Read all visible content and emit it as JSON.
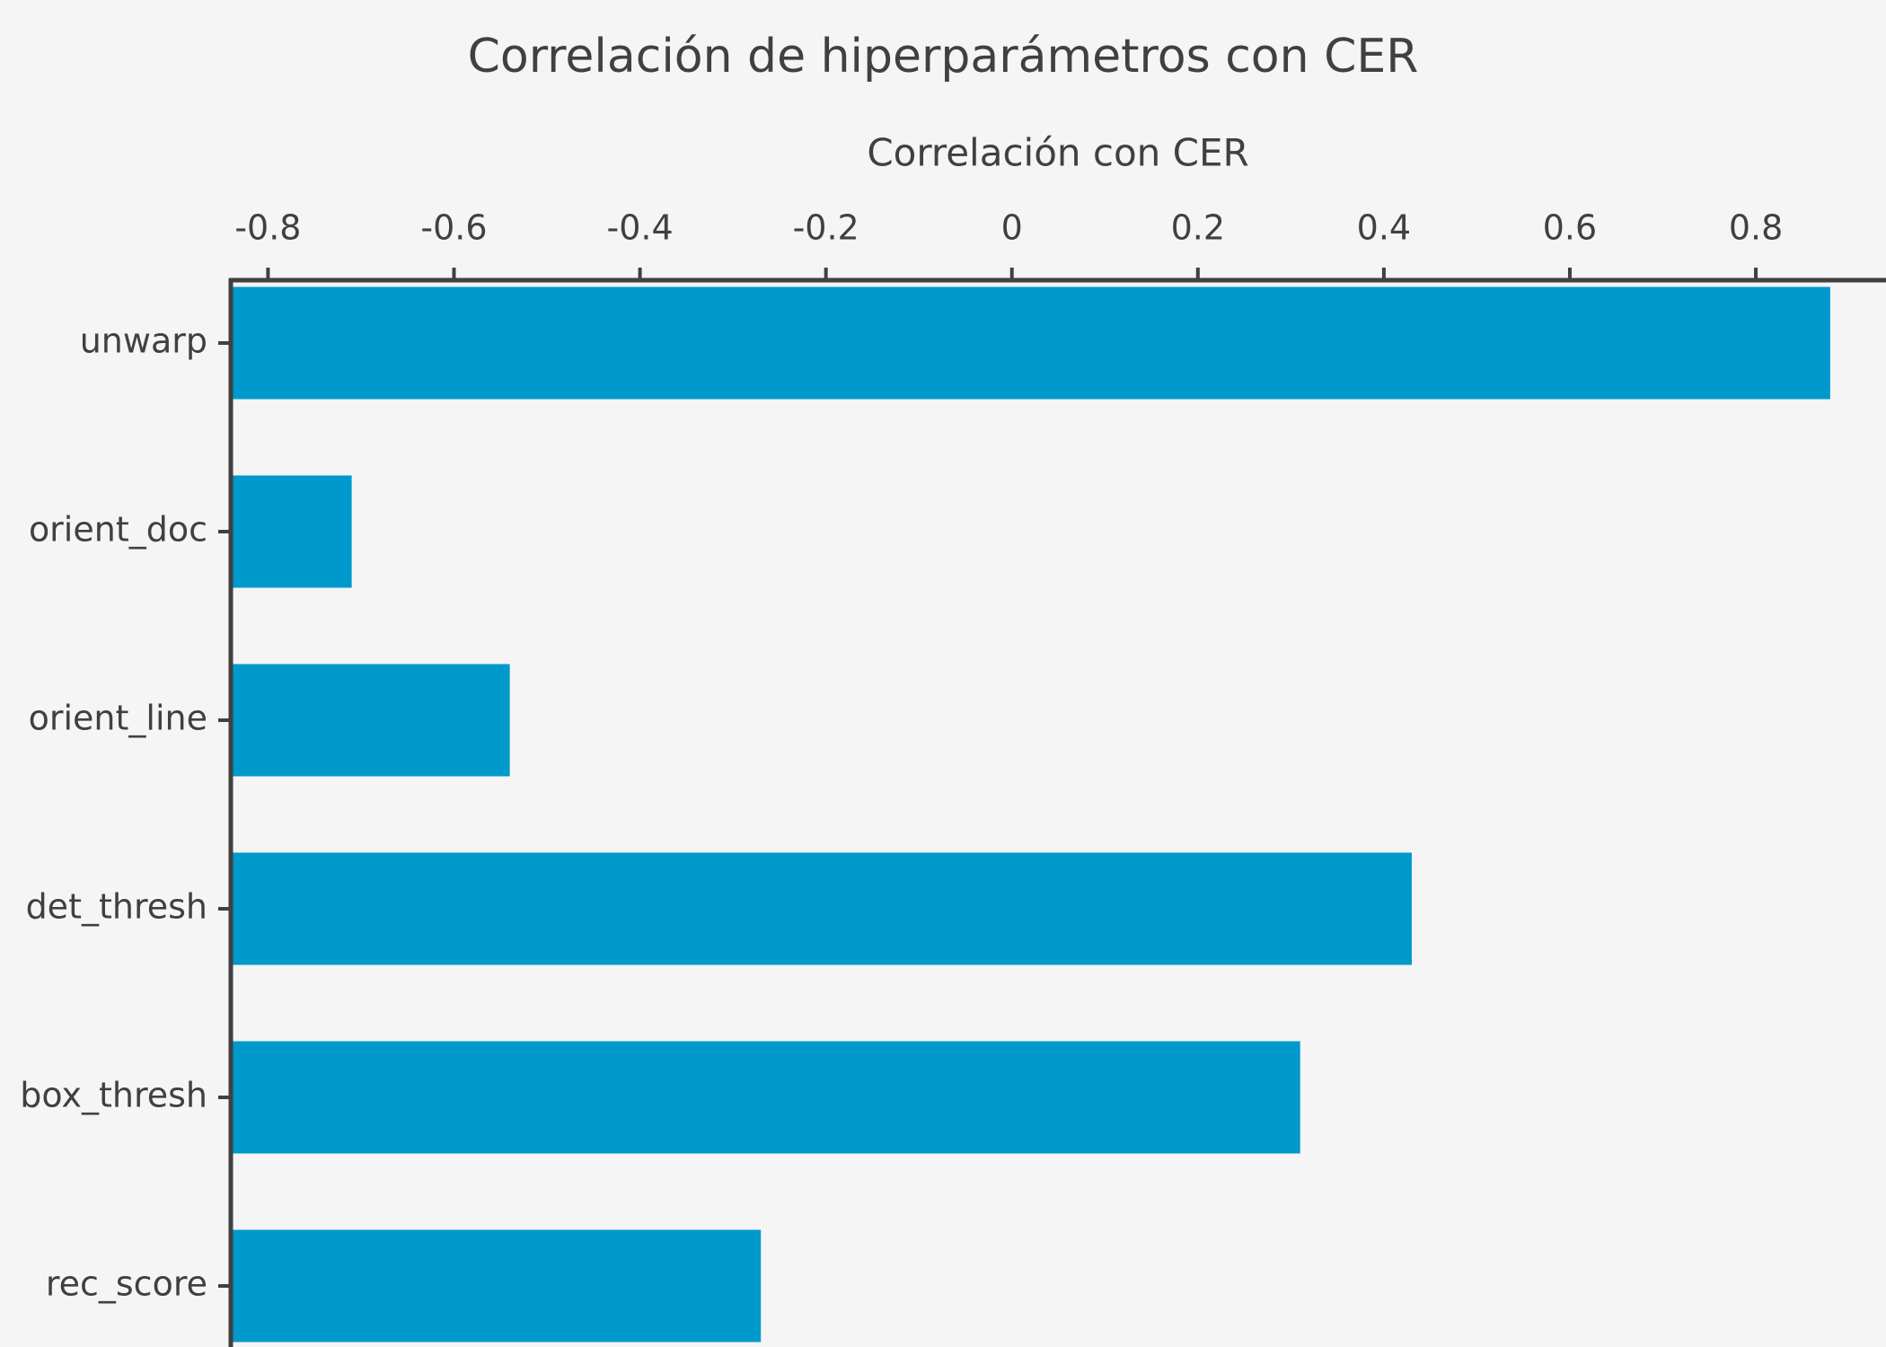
{
  "chart_data": {
    "type": "bar",
    "orientation": "horizontal",
    "title": "Correlación de hiperparámetros con CER",
    "x_label": "Correlación con CER",
    "categories": [
      "unwarp",
      "orient_doc",
      "orient_line",
      "det_thresh",
      "box_thresh",
      "rec_score"
    ],
    "values": [
      0.88,
      -0.71,
      -0.54,
      0.43,
      0.31,
      -0.27
    ],
    "color": "#0099cc",
    "xlim": [
      -0.84,
      0.94
    ],
    "xticks": [
      -0.8,
      -0.6,
      -0.4,
      -0.2,
      0,
      0.2,
      0.4,
      0.6,
      0.8
    ],
    "grid": false
  }
}
